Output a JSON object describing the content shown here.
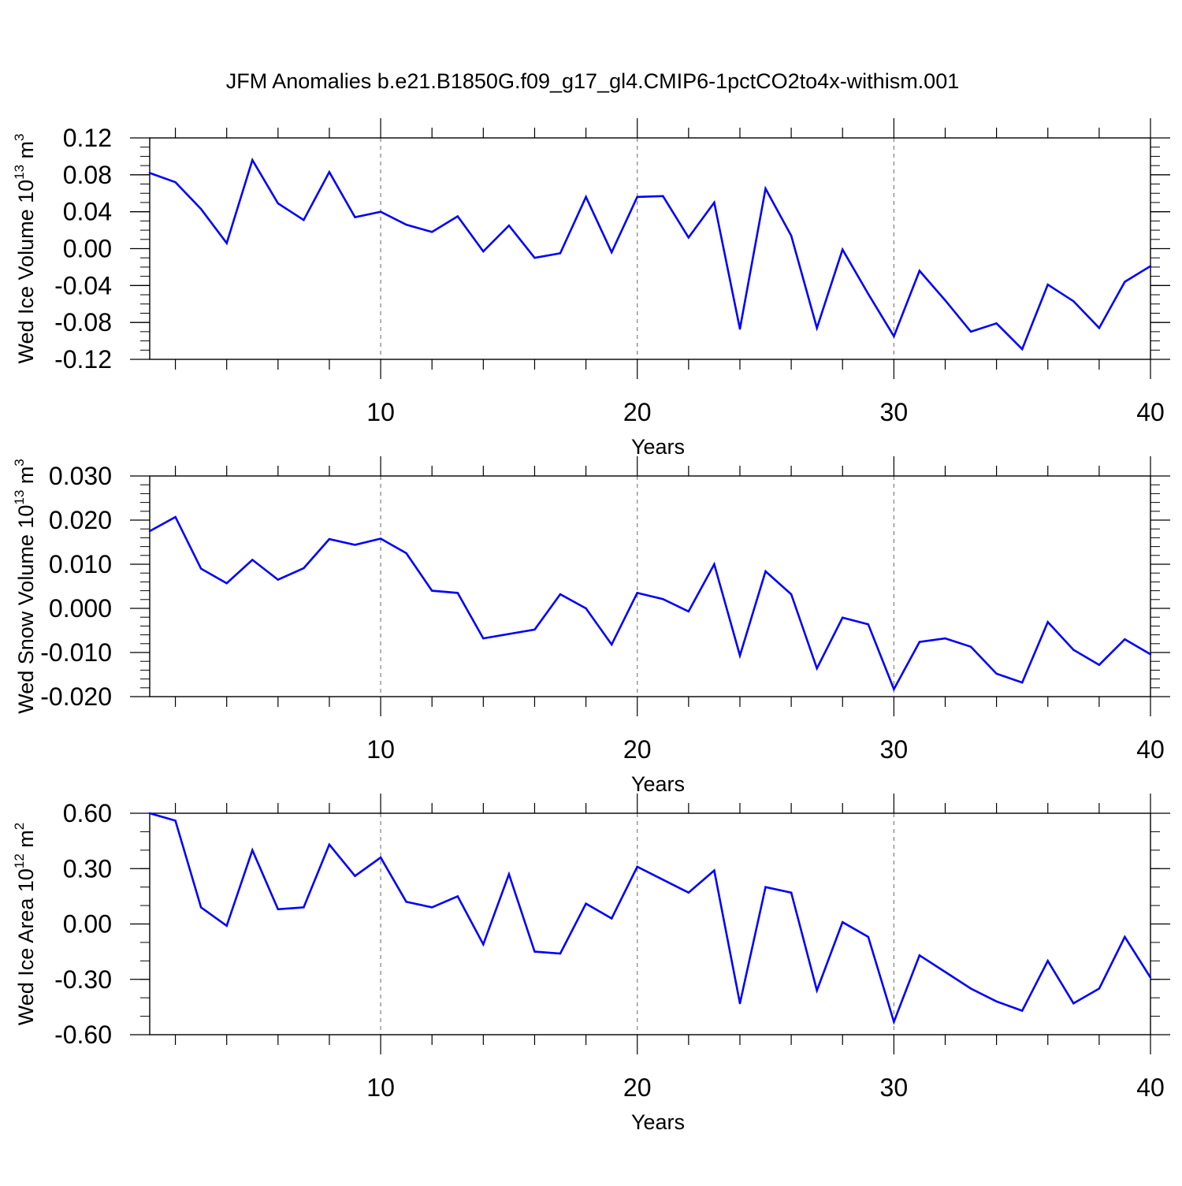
{
  "figure": {
    "title": "JFM Anomalies b.e21.B1850G.f09_g17_gl4.CMIP6-1pctCO2to4x-withism.001",
    "line_color": "#0000ff",
    "grid_style": "dashed vertical at major x ticks"
  },
  "chart_data": [
    {
      "type": "line",
      "ylabel": {
        "text": "Wed Ice Volume 10",
        "sup": "13",
        "unit": " m",
        "unit_sup": "3"
      },
      "xlabel": "Years",
      "xlim": [
        1,
        40
      ],
      "x_ticks": [
        10,
        20,
        30,
        40
      ],
      "x_tick_labels": [
        "10",
        "20",
        "30",
        "40"
      ],
      "ylim": [
        -0.12,
        0.12
      ],
      "y_ticks": [
        -0.12,
        -0.08,
        -0.04,
        0.0,
        0.04,
        0.08,
        0.12
      ],
      "y_tick_labels": [
        "-0.12",
        "-0.08",
        "-0.04",
        "0.00",
        "0.04",
        "0.08",
        "0.12"
      ],
      "y_minor_step": 0.01,
      "grid": true,
      "x": [
        1,
        2,
        3,
        4,
        5,
        6,
        7,
        8,
        9,
        10,
        11,
        12,
        13,
        14,
        15,
        16,
        17,
        18,
        19,
        20,
        21,
        22,
        23,
        24,
        25,
        26,
        27,
        28,
        29,
        30,
        31,
        32,
        33,
        34,
        35,
        36,
        37,
        38,
        39,
        40
      ],
      "values": [
        0.082,
        0.072,
        0.043,
        0.006,
        0.096,
        0.049,
        0.031,
        0.083,
        0.034,
        0.04,
        0.026,
        0.018,
        0.035,
        -0.003,
        0.025,
        -0.01,
        -0.005,
        0.056,
        -0.004,
        0.056,
        0.057,
        0.012,
        0.05,
        -0.087,
        0.065,
        0.014,
        -0.086,
        -0.001,
        -0.049,
        -0.095,
        -0.024,
        -0.056,
        -0.09,
        -0.081,
        -0.109,
        -0.039,
        -0.057,
        -0.086,
        -0.036,
        -0.019
      ]
    },
    {
      "type": "line",
      "ylabel": {
        "text": "Wed Snow Volume 10",
        "sup": "13",
        "unit": " m",
        "unit_sup": "3"
      },
      "xlabel": "Years",
      "xlim": [
        1,
        40
      ],
      "x_ticks": [
        10,
        20,
        30,
        40
      ],
      "x_tick_labels": [
        "10",
        "20",
        "30",
        "40"
      ],
      "ylim": [
        -0.02,
        0.03
      ],
      "y_ticks": [
        -0.02,
        -0.01,
        0.0,
        0.01,
        0.02,
        0.03
      ],
      "y_tick_labels": [
        "-0.020",
        "-0.010",
        "0.000",
        "0.010",
        "0.020",
        "0.030"
      ],
      "y_minor_step": 0.002,
      "grid": true,
      "x": [
        1,
        2,
        3,
        4,
        5,
        6,
        7,
        8,
        9,
        10,
        11,
        12,
        13,
        14,
        15,
        16,
        17,
        18,
        19,
        20,
        21,
        22,
        23,
        24,
        25,
        26,
        27,
        28,
        29,
        30,
        31,
        32,
        33,
        34,
        35,
        36,
        37,
        38,
        39,
        40
      ],
      "values": [
        0.0175,
        0.0207,
        0.009,
        0.0057,
        0.011,
        0.0065,
        0.0091,
        0.0157,
        0.0144,
        0.0158,
        0.0125,
        0.004,
        0.0035,
        -0.0068,
        -0.0058,
        -0.0048,
        0.0032,
        0.0,
        -0.0082,
        0.0035,
        0.0021,
        -0.0007,
        0.01,
        -0.0107,
        0.0084,
        0.0032,
        -0.0136,
        -0.0021,
        -0.0036,
        -0.0183,
        -0.0076,
        -0.0068,
        -0.0087,
        -0.0148,
        -0.0168,
        -0.0031,
        -0.0094,
        -0.0128,
        -0.007,
        -0.0104
      ]
    },
    {
      "type": "line",
      "ylabel": {
        "text": "Wed Ice Area 10",
        "sup": "12",
        "unit": " m",
        "unit_sup": "2"
      },
      "xlabel": "Years",
      "xlim": [
        1,
        40
      ],
      "x_ticks": [
        10,
        20,
        30,
        40
      ],
      "x_tick_labels": [
        "10",
        "20",
        "30",
        "40"
      ],
      "ylim": [
        -0.6,
        0.6
      ],
      "y_ticks": [
        -0.6,
        -0.3,
        0.0,
        0.3,
        0.6
      ],
      "y_tick_labels": [
        "-0.60",
        "-0.30",
        "0.00",
        "0.30",
        "0.60"
      ],
      "y_minor_step": 0.1,
      "grid": true,
      "x": [
        1,
        2,
        3,
        4,
        5,
        6,
        7,
        8,
        9,
        10,
        11,
        12,
        13,
        14,
        15,
        16,
        17,
        18,
        19,
        20,
        21,
        22,
        23,
        24,
        25,
        26,
        27,
        28,
        29,
        30,
        31,
        32,
        33,
        34,
        35,
        36,
        37,
        38,
        39,
        40
      ],
      "values": [
        0.6,
        0.56,
        0.09,
        -0.01,
        0.4,
        0.08,
        0.09,
        0.43,
        0.26,
        0.36,
        0.12,
        0.09,
        0.15,
        -0.11,
        0.27,
        -0.15,
        -0.16,
        0.11,
        0.03,
        0.31,
        0.24,
        0.17,
        0.29,
        -0.43,
        0.2,
        0.17,
        -0.36,
        0.01,
        -0.07,
        -0.53,
        -0.17,
        -0.26,
        -0.35,
        -0.42,
        -0.47,
        -0.2,
        -0.43,
        -0.35,
        -0.07,
        -0.29
      ]
    }
  ]
}
